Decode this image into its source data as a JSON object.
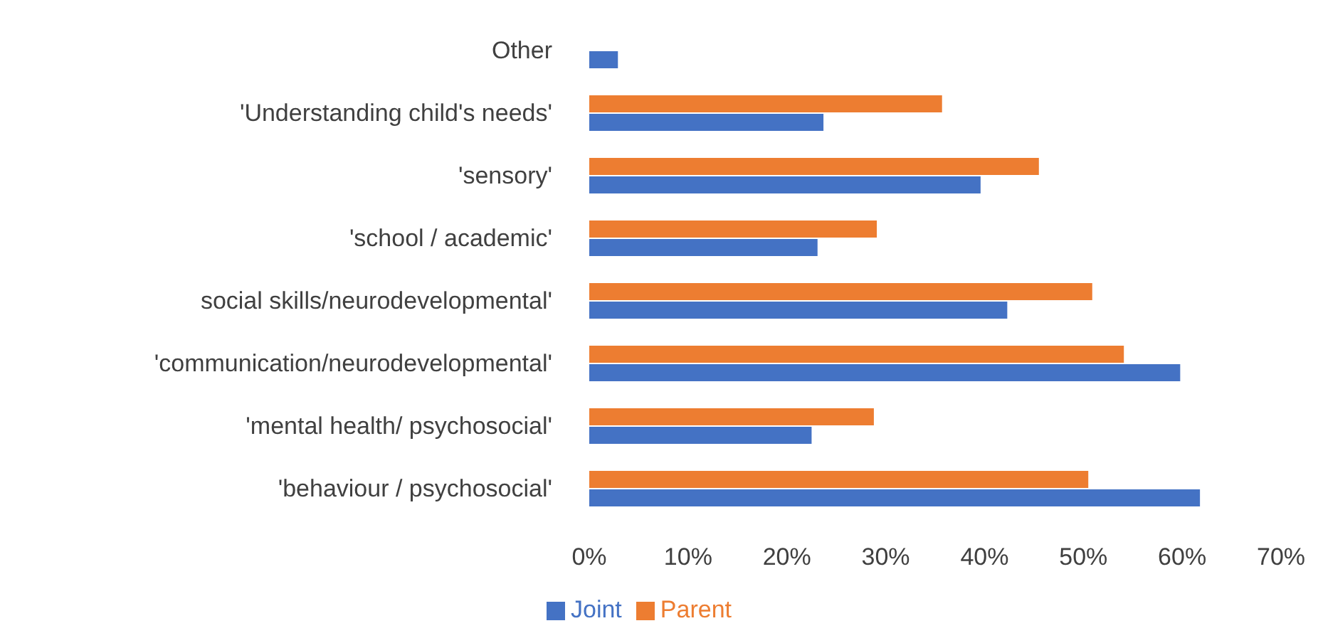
{
  "chart_data": {
    "type": "bar",
    "orientation": "horizontal",
    "categories": [
      "Other",
      "'Understanding child's needs'",
      "'sensory'",
      "'school / academic'",
      "social skills/neurodevelopmental'",
      "'communication/neurodevelopmental'",
      "'mental health/ psychosocial'",
      "'behaviour / psychosocial'"
    ],
    "series": [
      {
        "name": "Parent",
        "color": "#ed7d31",
        "values": [
          null,
          35.7,
          45.5,
          29.1,
          50.9,
          54.1,
          28.8,
          50.5
        ]
      },
      {
        "name": "Joint",
        "color": "#4472c4",
        "values": [
          2.9,
          23.7,
          39.6,
          23.1,
          42.3,
          59.8,
          22.5,
          61.8
        ]
      }
    ],
    "xlim": [
      0,
      70
    ],
    "xticks": [
      {
        "value": 0,
        "label": "0%"
      },
      {
        "value": 10,
        "label": "10%"
      },
      {
        "value": 20,
        "label": "20%"
      },
      {
        "value": 30,
        "label": "30%"
      },
      {
        "value": 40,
        "label": "40%"
      },
      {
        "value": 50,
        "label": "50%"
      },
      {
        "value": 60,
        "label": "60%"
      },
      {
        "value": 70,
        "label": "70%"
      }
    ],
    "grid": false,
    "legend": "bottom"
  }
}
